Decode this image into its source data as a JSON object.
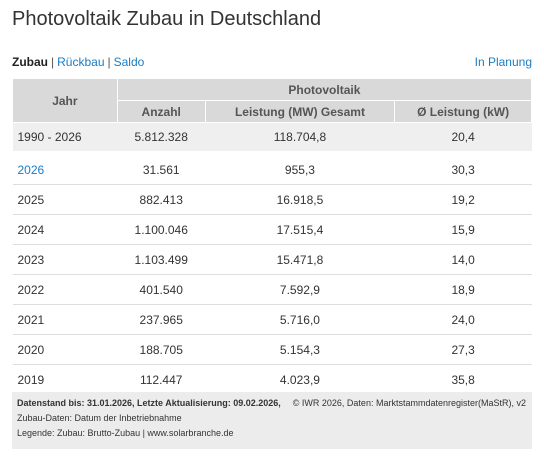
{
  "header": {
    "title": "Photovoltaik Zubau in Deutschland"
  },
  "tabs": {
    "items": [
      "Zubau",
      "Rückbau",
      "Saldo"
    ],
    "separator": "|",
    "right": "In Planung"
  },
  "table": {
    "group_header": "Photovoltaik",
    "columns": [
      "Jahr",
      "Anzahl",
      "Leistung (MW) Gesamt",
      "Ø Leistung (kW)"
    ],
    "total": [
      "1990 - 2026",
      "5.812.328",
      "118.704,8",
      "20,4"
    ],
    "rows": [
      [
        "2026",
        "31.561",
        "955,3",
        "30,3"
      ],
      [
        "2025",
        "882.413",
        "16.918,5",
        "19,2"
      ],
      [
        "2024",
        "1.100.046",
        "17.515,4",
        "15,9"
      ],
      [
        "2023",
        "1.103.499",
        "15.471,8",
        "14,0"
      ],
      [
        "2022",
        "401.540",
        "7.592,9",
        "18,9"
      ],
      [
        "2021",
        "237.965",
        "5.716,0",
        "24,0"
      ],
      [
        "2020",
        "188.705",
        "5.154,3",
        "27,3"
      ],
      [
        "2019",
        "112.447",
        "4.023,9",
        "35,8"
      ]
    ]
  },
  "footer": {
    "status": "Datenstand bis: 31.01.2026, Letzte Aktualisierung: 09.02.2026,",
    "source": "© IWR 2026, Daten: Marktstammdatenregister(MaStR), v2",
    "notes": [
      "Zubau-Daten: Datum der Inbetriebnahme",
      "Legende: Zubau: Brutto-Zubau | www.solarbranche.de"
    ]
  }
}
